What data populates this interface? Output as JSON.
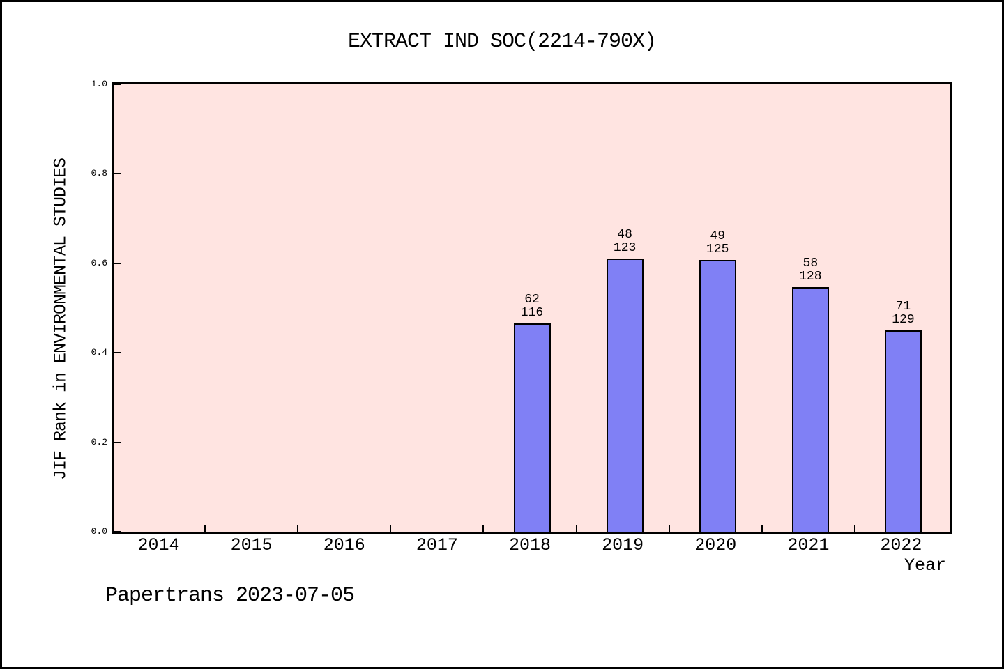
{
  "figure": {
    "background": "#ffffff",
    "frame_border_color": "#000000"
  },
  "chart_data": {
    "type": "bar",
    "title": "EXTRACT IND SOC(2214-790X)",
    "xlabel": "Year",
    "ylabel": "JIF Rank in ENVIRONMENTAL STUDIES",
    "categories": [
      "2014",
      "2015",
      "2016",
      "2017",
      "2018",
      "2019",
      "2020",
      "2021",
      "2022"
    ],
    "ylim": [
      0.0,
      1.0
    ],
    "ytick_labels": [
      "0.0",
      "0.2",
      "0.4",
      "0.6",
      "0.8",
      "1.0"
    ],
    "ytick_values": [
      0.0,
      0.2,
      0.4,
      0.6,
      0.8,
      1.0
    ],
    "grid": false,
    "legend": "none",
    "plot_background": "#ffe4e1",
    "bar_color": "#8080f5",
    "bar_edge_color": "#000000",
    "bars": [
      {
        "category": "2018",
        "rank": "62",
        "total": "116",
        "value": 0.466
      },
      {
        "category": "2019",
        "rank": "48",
        "total": "123",
        "value": 0.61
      },
      {
        "category": "2020",
        "rank": "49",
        "total": "125",
        "value": 0.608
      },
      {
        "category": "2021",
        "rank": "58",
        "total": "128",
        "value": 0.547
      },
      {
        "category": "2022",
        "rank": "71",
        "total": "129",
        "value": 0.45
      }
    ]
  },
  "footer": {
    "text": "Papertrans 2023-07-05"
  }
}
